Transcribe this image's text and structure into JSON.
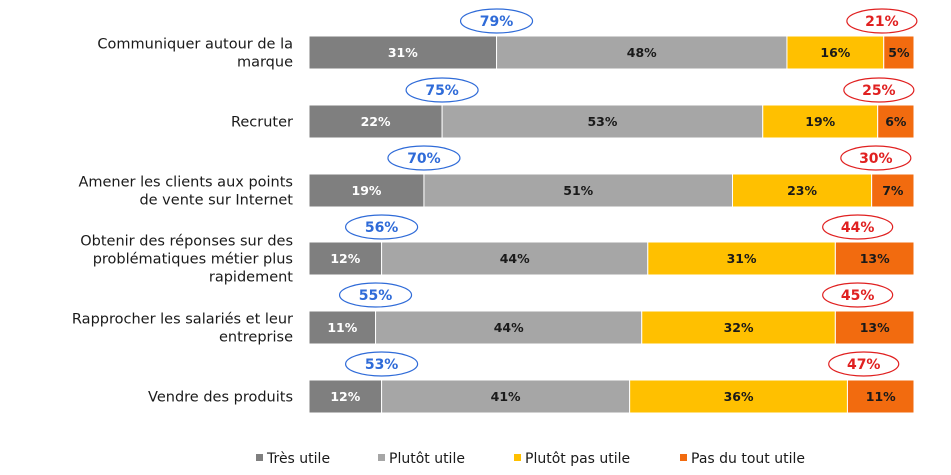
{
  "chart_data": {
    "type": "bar",
    "orientation": "horizontal-stacked-100",
    "categories": [
      [
        "Communiquer autour de la",
        "marque"
      ],
      [
        "Recruter"
      ],
      [
        "Amener les clients aux points",
        "de vente sur Internet"
      ],
      [
        "Obtenir des réponses sur des",
        "problématiques métier plus",
        "rapidement"
      ],
      [
        "Rapprocher les salariés et leur",
        "entreprise"
      ],
      [
        "Vendre des produits"
      ]
    ],
    "series": [
      {
        "name": "Très utile",
        "color": "#7f7f7f",
        "label_color": "#ffffff",
        "values": [
          31,
          22,
          19,
          12,
          11,
          12
        ]
      },
      {
        "name": "Plutôt utile",
        "color": "#a6a6a6",
        "label_color": "#1a1a1a",
        "values": [
          48,
          53,
          51,
          44,
          44,
          41
        ]
      },
      {
        "name": "Plutôt pas utile",
        "color": "#ffc000",
        "label_color": "#1a1a1a",
        "values": [
          16,
          19,
          23,
          31,
          32,
          36
        ]
      },
      {
        "name": "Pas du tout utile",
        "color": "#f26b0f",
        "label_color": "#1a1a1a",
        "values": [
          5,
          6,
          7,
          13,
          13,
          11
        ]
      }
    ],
    "positive_totals": {
      "values": [
        79,
        75,
        70,
        56,
        55,
        53
      ],
      "color": "#2f6bd8"
    },
    "negative_totals": {
      "values": [
        21,
        25,
        30,
        44,
        45,
        47
      ],
      "color": "#e02020"
    },
    "value_suffix": "%",
    "xlim": [
      0,
      100
    ],
    "legend_position": "bottom"
  }
}
